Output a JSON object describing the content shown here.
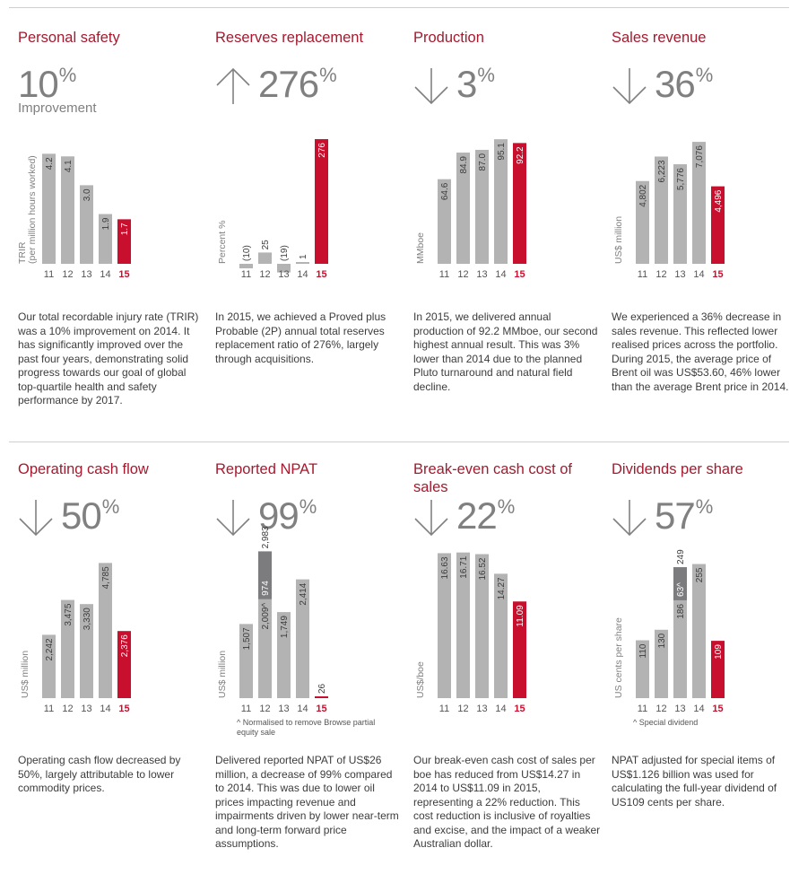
{
  "colors": {
    "grey": "#b3b3b4",
    "dark_grey": "#7c7c7e",
    "red": "#c8102e",
    "title_red": "#a6192e",
    "arrow": "#808080"
  },
  "panels": [
    {
      "title": "Personal safety",
      "percent": "10",
      "percent_symbol": "%",
      "arrow": "none",
      "subhead": "Improvement",
      "body": "Our total recordable injury rate (TRIR) was a 10% improvement on 2014. It has significantly improved over the past four years, demonstrating solid progress towards our goal of global top-quartile health and safety performance by 2017.",
      "footnote": "",
      "chart_data": {
        "type": "bar",
        "ylabel": "TRIR (per million hours worked)",
        "categories": [
          "11",
          "12",
          "13",
          "14",
          "15"
        ],
        "values": [
          4.2,
          4.1,
          3.0,
          1.9,
          1.7
        ],
        "labels": [
          "4.2",
          "4.1",
          "3.0",
          "1.9",
          "1.7"
        ],
        "ylim": [
          0,
          5.0
        ],
        "highlight_last": true
      }
    },
    {
      "title": "Reserves replacement",
      "percent": "276",
      "percent_symbol": "%",
      "arrow": "up",
      "subhead": "",
      "body": "In 2015, we achieved a Proved plus Probable (2P) annual total reserves replacement ratio of 276%, largely through acquisitions.",
      "footnote": "",
      "chart_data": {
        "type": "bar",
        "ylabel": "Percent %",
        "categories": [
          "11",
          "12",
          "13",
          "14",
          "15"
        ],
        "values": [
          -10,
          25,
          -19,
          1,
          276
        ],
        "labels": [
          "(10)",
          "25",
          "(19)",
          "1",
          "276"
        ],
        "ylim": [
          -20,
          290
        ],
        "highlight_last": true
      }
    },
    {
      "title": "Production",
      "percent": "3",
      "percent_symbol": "%",
      "arrow": "down",
      "subhead": "",
      "body": "In 2015, we delivered annual production of 92.2 MMboe, our second highest annual result. This was 3% lower than 2014 due to the planned Pluto turnaround and natural field decline.",
      "footnote": "",
      "chart_data": {
        "type": "bar",
        "ylabel": "MMboe",
        "categories": [
          "11",
          "12",
          "13",
          "14",
          "15"
        ],
        "values": [
          64.6,
          84.9,
          87.0,
          95.1,
          92.2
        ],
        "labels": [
          "64.6",
          "84.9",
          "87.0",
          "95.1",
          "92.2"
        ],
        "ylim": [
          0,
          100
        ],
        "highlight_last": true
      }
    },
    {
      "title": "Sales revenue",
      "percent": "36",
      "percent_symbol": "%",
      "arrow": "down",
      "subhead": "",
      "body": "We experienced a 36% decrease in sales revenue. This reflected lower realised prices across the portfolio. During 2015, the average price of Brent oil was US$53.60, 46% lower than the average Brent price in 2014.",
      "footnote": "",
      "chart_data": {
        "type": "bar",
        "ylabel": "US$ million",
        "categories": [
          "11",
          "12",
          "13",
          "14",
          "15"
        ],
        "values": [
          4802,
          6223,
          5776,
          7076,
          4496
        ],
        "labels": [
          "4,802",
          "6,223",
          "5,776",
          "7,076",
          "4,496"
        ],
        "ylim": [
          0,
          7600
        ],
        "highlight_last": true
      }
    },
    {
      "title": "Operating cash flow",
      "percent": "50",
      "percent_symbol": "%",
      "arrow": "down",
      "subhead": "",
      "body": "Operating cash flow decreased by 50%, largely attributable to lower commodity prices.",
      "footnote": "",
      "chart_data": {
        "type": "bar",
        "ylabel": "US$ million",
        "categories": [
          "11",
          "12",
          "13",
          "14",
          "15"
        ],
        "values": [
          2242,
          3475,
          3330,
          4785,
          2376
        ],
        "labels": [
          "2,242",
          "3,475",
          "3,330",
          "4,785",
          "2,376"
        ],
        "ylim": [
          0,
          5400
        ],
        "highlight_last": true
      }
    },
    {
      "title": "Reported NPAT",
      "percent": "99",
      "percent_symbol": "%",
      "arrow": "down",
      "subhead": "",
      "body": "Delivered reported NPAT of US$26 million, a decrease of 99% compared to 2014. This was due to lower oil prices impacting revenue and impairments driven by lower near-term and long-term forward price assumptions.",
      "footnote": "^ Normalised to remove Browse partial equity sale",
      "chart_data": {
        "type": "bar",
        "ylabel": "US$ million",
        "categories": [
          "11",
          "12",
          "13",
          "14",
          "15"
        ],
        "values": [
          1507,
          2009,
          1749,
          2414,
          26
        ],
        "labels": [
          "1,507",
          "2,009^",
          "1,749",
          "2,414",
          "26"
        ],
        "stack": {
          "index": 1,
          "value": 974,
          "label": "974",
          "total_label": "2,983"
        },
        "ylim": [
          0,
          3100
        ],
        "highlight_last": true
      }
    },
    {
      "title": "Break-even cash cost of sales",
      "percent": "22",
      "percent_symbol": "%",
      "arrow": "down",
      "subhead": "",
      "body": "Our break-even cash cost of sales per boe has reduced from US$14.27 in 2014 to US$11.09 in 2015, representing a 22% reduction. This cost reduction is inclusive of royalties and excise, and the impact of a weaker Australian dollar.",
      "footnote": "",
      "chart_data": {
        "type": "bar",
        "ylabel": "US$/boe",
        "categories": [
          "11",
          "12",
          "13",
          "14",
          "15"
        ],
        "values": [
          16.63,
          16.71,
          16.52,
          14.27,
          11.09
        ],
        "labels": [
          "16.63",
          "16.71",
          "16.52",
          "14.27",
          "11.09"
        ],
        "ylim": [
          0,
          17.5
        ],
        "highlight_last": true
      }
    },
    {
      "title": "Dividends per share",
      "percent": "57",
      "percent_symbol": "%",
      "arrow": "down",
      "subhead": "",
      "body": "NPAT adjusted for special items of US$1.126 billion was used for calculating the full-year dividend of US109 cents per share.",
      "footnote": "^ Special dividend",
      "chart_data": {
        "type": "bar",
        "ylabel": "US cents per share",
        "categories": [
          "11",
          "12",
          "13",
          "14",
          "15"
        ],
        "values": [
          110,
          130,
          186,
          255,
          109
        ],
        "labels": [
          "110",
          "130",
          "186",
          "255",
          "109"
        ],
        "stack": {
          "index": 2,
          "value": 63,
          "label": "63^",
          "total_label": "249"
        },
        "ylim": [
          0,
          290
        ],
        "highlight_last": true
      }
    }
  ]
}
